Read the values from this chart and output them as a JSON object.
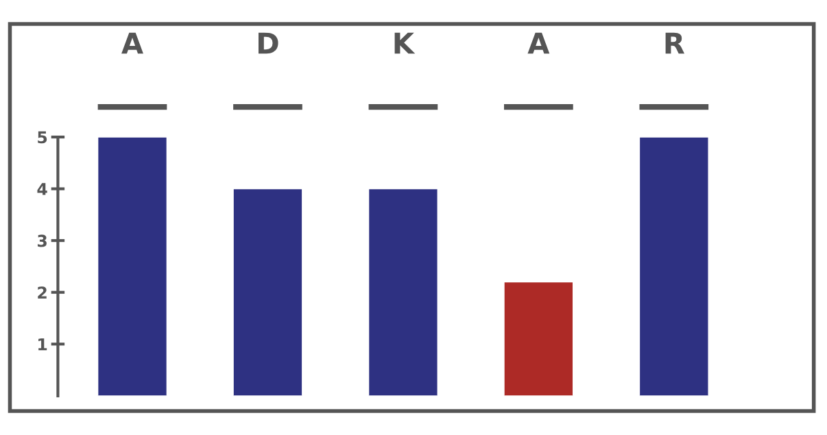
{
  "chart_data": {
    "type": "bar",
    "categories": [
      "A",
      "D",
      "K",
      "A",
      "R"
    ],
    "values": [
      5,
      4,
      4,
      2.2,
      5
    ],
    "colors": [
      "#2e3182",
      "#2e3182",
      "#2e3182",
      "#ad2a26",
      "#2e3182"
    ],
    "ylim": [
      0,
      5
    ],
    "yticks": [
      1,
      2,
      3,
      4,
      5
    ],
    "grid": false,
    "legend": false
  }
}
